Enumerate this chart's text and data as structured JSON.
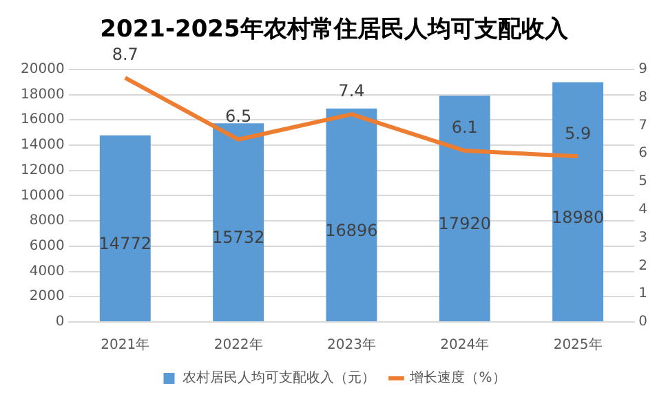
{
  "chart_data": {
    "type": "bar",
    "title": "2021-2025年农村常住居民人均可支配收入",
    "categories": [
      "2021年",
      "2022年",
      "2023年",
      "2024年",
      "2025年"
    ],
    "series": [
      {
        "name": "农村居民人均可支配收入（元）",
        "color": "#5b9bd5",
        "values": [
          14772,
          15732,
          16896,
          17920,
          18980
        ]
      },
      {
        "name": "增长速度（%）",
        "type": "line",
        "axis": "y2",
        "color": "#ed7d31",
        "values": [
          8.7,
          6.5,
          7.4,
          6.1,
          5.9
        ]
      }
    ],
    "ylim": [
      0,
      20000
    ],
    "yticks": [
      0,
      2000,
      4000,
      6000,
      8000,
      10000,
      12000,
      14000,
      16000,
      18000,
      20000
    ],
    "y2lim": [
      0,
      9
    ],
    "y2ticks": [
      0,
      1,
      2,
      3,
      4,
      5,
      6,
      7,
      8,
      9
    ],
    "grid": "y",
    "legend": "bottom",
    "marker": "none",
    "line_style": "solid",
    "data_labels": true
  }
}
